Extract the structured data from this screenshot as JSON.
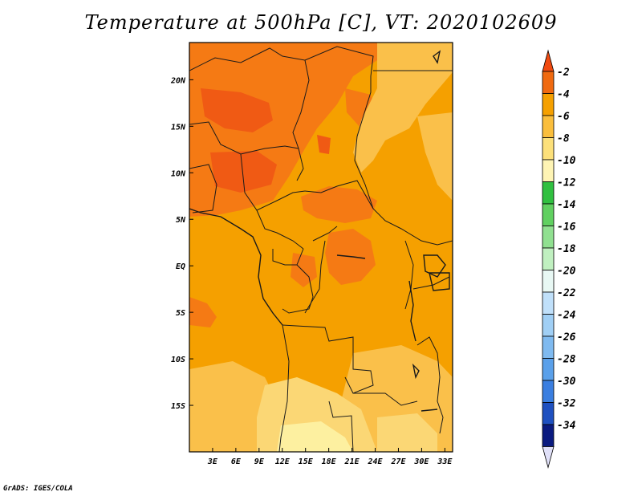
{
  "title": "Temperature at 500hPa [C], VT: 2020102609",
  "credit": "GrADS: IGES/COLA",
  "colors": {
    "base": "#f5a000",
    "warm": "#f57a14",
    "hot": "#f05a14",
    "light1": "#fac04a",
    "light2": "#fbd775",
    "light3": "#fdf0a0",
    "border": "#1a1a1a"
  },
  "map_data": {
    "lon_range": [
      0,
      34
    ],
    "lat_range": [
      -20,
      24
    ],
    "lon_ticks": [
      {
        "value": 3,
        "label": "3E"
      },
      {
        "value": 6,
        "label": "6E"
      },
      {
        "value": 9,
        "label": "9E"
      },
      {
        "value": 12,
        "label": "12E"
      },
      {
        "value": 15,
        "label": "15E"
      },
      {
        "value": 18,
        "label": "18E"
      },
      {
        "value": 21,
        "label": "21E"
      },
      {
        "value": 24,
        "label": "24E"
      },
      {
        "value": 27,
        "label": "27E"
      },
      {
        "value": 30,
        "label": "30E"
      },
      {
        "value": 33,
        "label": "33E"
      }
    ],
    "lat_ticks": [
      {
        "value": 20,
        "label": "20N"
      },
      {
        "value": 15,
        "label": "15N"
      },
      {
        "value": 10,
        "label": "10N"
      },
      {
        "value": 5,
        "label": "5N"
      },
      {
        "value": 0,
        "label": "EQ"
      },
      {
        "value": -5,
        "label": "5S"
      },
      {
        "value": -10,
        "label": "10S"
      },
      {
        "value": -15,
        "label": "15S"
      }
    ]
  },
  "colorbar": {
    "labels": [
      "-2",
      "-4",
      "-6",
      "-8",
      "-10",
      "-12",
      "-14",
      "-16",
      "-18",
      "-20",
      "-22",
      "-24",
      "-26",
      "-28",
      "-30",
      "-32",
      "-34"
    ],
    "top_color": "#f04a10",
    "bottom_color": "#e0e0f8",
    "colors": [
      "#f06a10",
      "#f5a000",
      "#fabe3c",
      "#fce07a",
      "#fef4b4",
      "#30c040",
      "#60d060",
      "#90e090",
      "#c0f0c0",
      "#e8f8f4",
      "#c0e0fa",
      "#a0cff5",
      "#7fbaf0",
      "#5aa0ea",
      "#3a7ee0",
      "#1e50c0",
      "#0a1a80"
    ]
  }
}
